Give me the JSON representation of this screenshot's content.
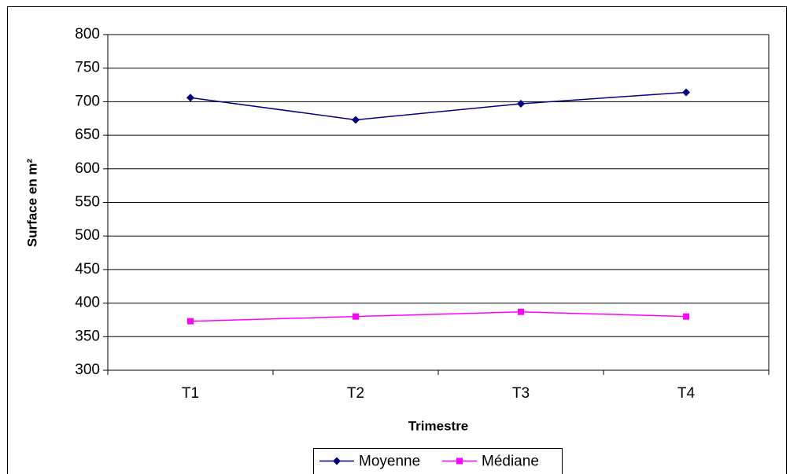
{
  "chart_data": {
    "type": "line",
    "x_label": "Trimestre",
    "y_label": "Surface en m²",
    "categories": [
      "T1",
      "T2",
      "T3",
      "T4"
    ],
    "series": [
      {
        "name": "Moyenne",
        "color": "#000080",
        "marker": "diamond",
        "values": [
          706,
          673,
          697,
          714
        ]
      },
      {
        "name": "Médiane",
        "color": "#ff00ff",
        "marker": "square",
        "values": [
          373,
          380,
          387,
          380
        ]
      }
    ],
    "ylim": [
      300,
      800
    ],
    "yticks": [
      300,
      350,
      400,
      450,
      500,
      550,
      600,
      650,
      700,
      750,
      800
    ],
    "grid": true,
    "legend": "bottom"
  }
}
